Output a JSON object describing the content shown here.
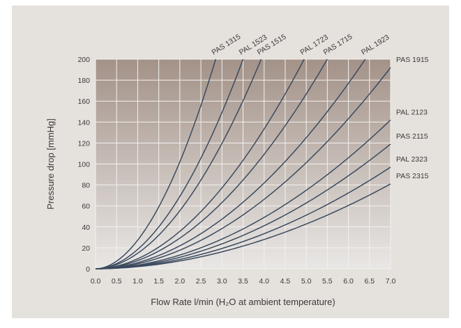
{
  "chart_data": {
    "type": "line",
    "title": "",
    "xlabel": "Flow Rate l/min (H₂O at ambient temperature)",
    "ylabel": "Pressure drop [mmHg]",
    "xlim": [
      0,
      7
    ],
    "ylim": [
      0,
      200
    ],
    "x_ticks": [
      "0.0",
      "0.5",
      "1.0",
      "1.5",
      "2.0",
      "2.5",
      "3.0",
      "3.5",
      "4.0",
      "4.5",
      "5.0",
      "5.5",
      "6.0",
      "6.5",
      "7.0"
    ],
    "y_ticks": [
      "0",
      "20",
      "40",
      "60",
      "80",
      "100",
      "120",
      "140",
      "160",
      "180",
      "200"
    ],
    "grid": true,
    "curve_model": "y = k*x^p (smooth quadratic-like curves through origin)",
    "exponent": 1.9,
    "series": [
      {
        "name": "PAS 1315",
        "label_position": "top",
        "end": [
          2.85,
          200
        ]
      },
      {
        "name": "PAL 1523",
        "label_position": "top",
        "end": [
          3.5,
          200
        ]
      },
      {
        "name": "PAS 1515",
        "label_position": "top",
        "end": [
          3.93,
          200
        ]
      },
      {
        "name": "PAL 1723",
        "label_position": "top",
        "end": [
          4.95,
          200
        ]
      },
      {
        "name": "PAS 1715",
        "label_position": "top",
        "end": [
          5.5,
          200
        ]
      },
      {
        "name": "PAL 1923",
        "label_position": "top",
        "end": [
          6.4,
          200
        ]
      },
      {
        "name": "PAS 1915",
        "label_position": "right",
        "end": [
          7.0,
          192
        ]
      },
      {
        "name": "PAL 2123",
        "label_position": "right",
        "end": [
          7.0,
          142
        ]
      },
      {
        "name": "PAS 2115",
        "label_position": "right",
        "end": [
          7.0,
          119
        ]
      },
      {
        "name": "PAL 2323",
        "label_position": "right",
        "end": [
          7.0,
          97
        ]
      },
      {
        "name": "PAS 2315",
        "label_position": "right",
        "end": [
          7.0,
          81
        ]
      }
    ],
    "colors": {
      "plot_top": "#a39288",
      "plot_bottom": "#e9e7e5",
      "grid": "#f3f1ef",
      "line": "#3b4a5e",
      "panel": "#e5e1dc"
    }
  }
}
